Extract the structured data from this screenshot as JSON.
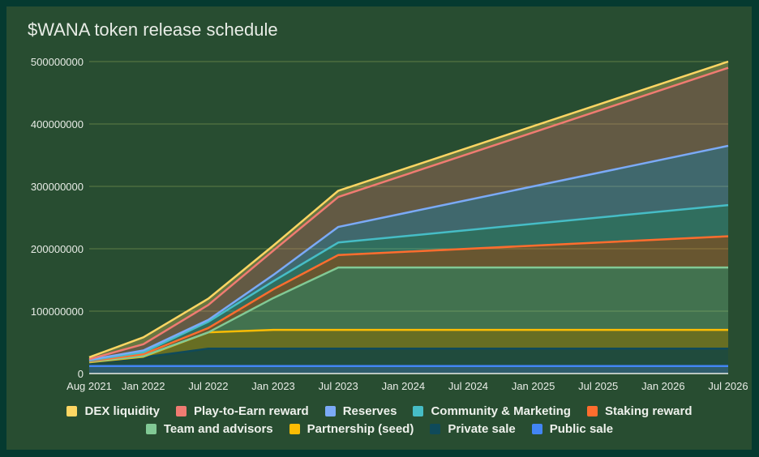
{
  "chart_data": {
    "type": "area",
    "stacked": true,
    "title": "$WANA token release schedule",
    "xlabel": "",
    "ylabel": "",
    "ylim": [
      0,
      500000000
    ],
    "y_ticks": [
      "0",
      "100000000",
      "200000000",
      "300000000",
      "400000000",
      "500000000"
    ],
    "x_ticks": [
      "Aug 2021",
      "Jan 2022",
      "Jul 2022",
      "Jan 2023",
      "Jul 2023",
      "Jan 2024",
      "Jul 2024",
      "Jan 2025",
      "Jul 2025",
      "Jan 2026",
      "Jul 2026"
    ],
    "x_tick_months": [
      0,
      5,
      11,
      17,
      23,
      29,
      35,
      41,
      47,
      53,
      59
    ],
    "x": [
      "Aug 2021",
      "Jan 2022",
      "Jul 2022",
      "Jan 2023",
      "Jul 2023",
      "Jul 2026"
    ],
    "x_months": [
      0,
      5,
      11,
      17,
      23,
      59
    ],
    "grid": true,
    "legend_position": "bottom",
    "series": [
      {
        "name": "Public sale",
        "color": "#4285f4",
        "values": [
          12000000,
          12000000,
          12000000,
          12000000,
          12000000,
          12000000
        ]
      },
      {
        "name": "Private sale",
        "color": "#0f4a5a",
        "values": [
          5000000,
          14000000,
          28000000,
          28000000,
          28000000,
          28000000
        ]
      },
      {
        "name": "Partnership (seed)",
        "color": "#fbbc04",
        "values": [
          1000000,
          1000000,
          26000000,
          30000000,
          30000000,
          30000000
        ]
      },
      {
        "name": "Team and advisors",
        "color": "#81c995",
        "values": [
          1000000,
          1000000,
          0,
          51000000,
          100000000,
          100000000
        ]
      },
      {
        "name": "Staking reward",
        "color": "#ff6d2e",
        "values": [
          1000000,
          3000000,
          7000000,
          14000000,
          20000000,
          50000000
        ]
      },
      {
        "name": "Community & Marketing",
        "color": "#46bdc6",
        "values": [
          1000000,
          3000000,
          10000000,
          13000000,
          20000000,
          50000000
        ]
      },
      {
        "name": "Reserves",
        "color": "#7baaf7",
        "values": [
          1000000,
          3000000,
          3000000,
          10000000,
          25000000,
          95000000
        ]
      },
      {
        "name": "Play-to-Earn reward",
        "color": "#f07b72",
        "values": [
          1000000,
          10000000,
          24000000,
          39000000,
          48000000,
          125000000
        ]
      },
      {
        "name": "DEX liquidity",
        "color": "#fdd663",
        "values": [
          3000000,
          11000000,
          10000000,
          8000000,
          10000000,
          10000000
        ]
      }
    ],
    "legend_rows": [
      [
        "DEX liquidity",
        "Play-to-Earn reward",
        "Reserves",
        "Community & Marketing",
        "Staking reward"
      ],
      [
        "Team and advisors",
        "Partnership (seed)",
        "Private sale",
        "Public sale"
      ]
    ]
  }
}
